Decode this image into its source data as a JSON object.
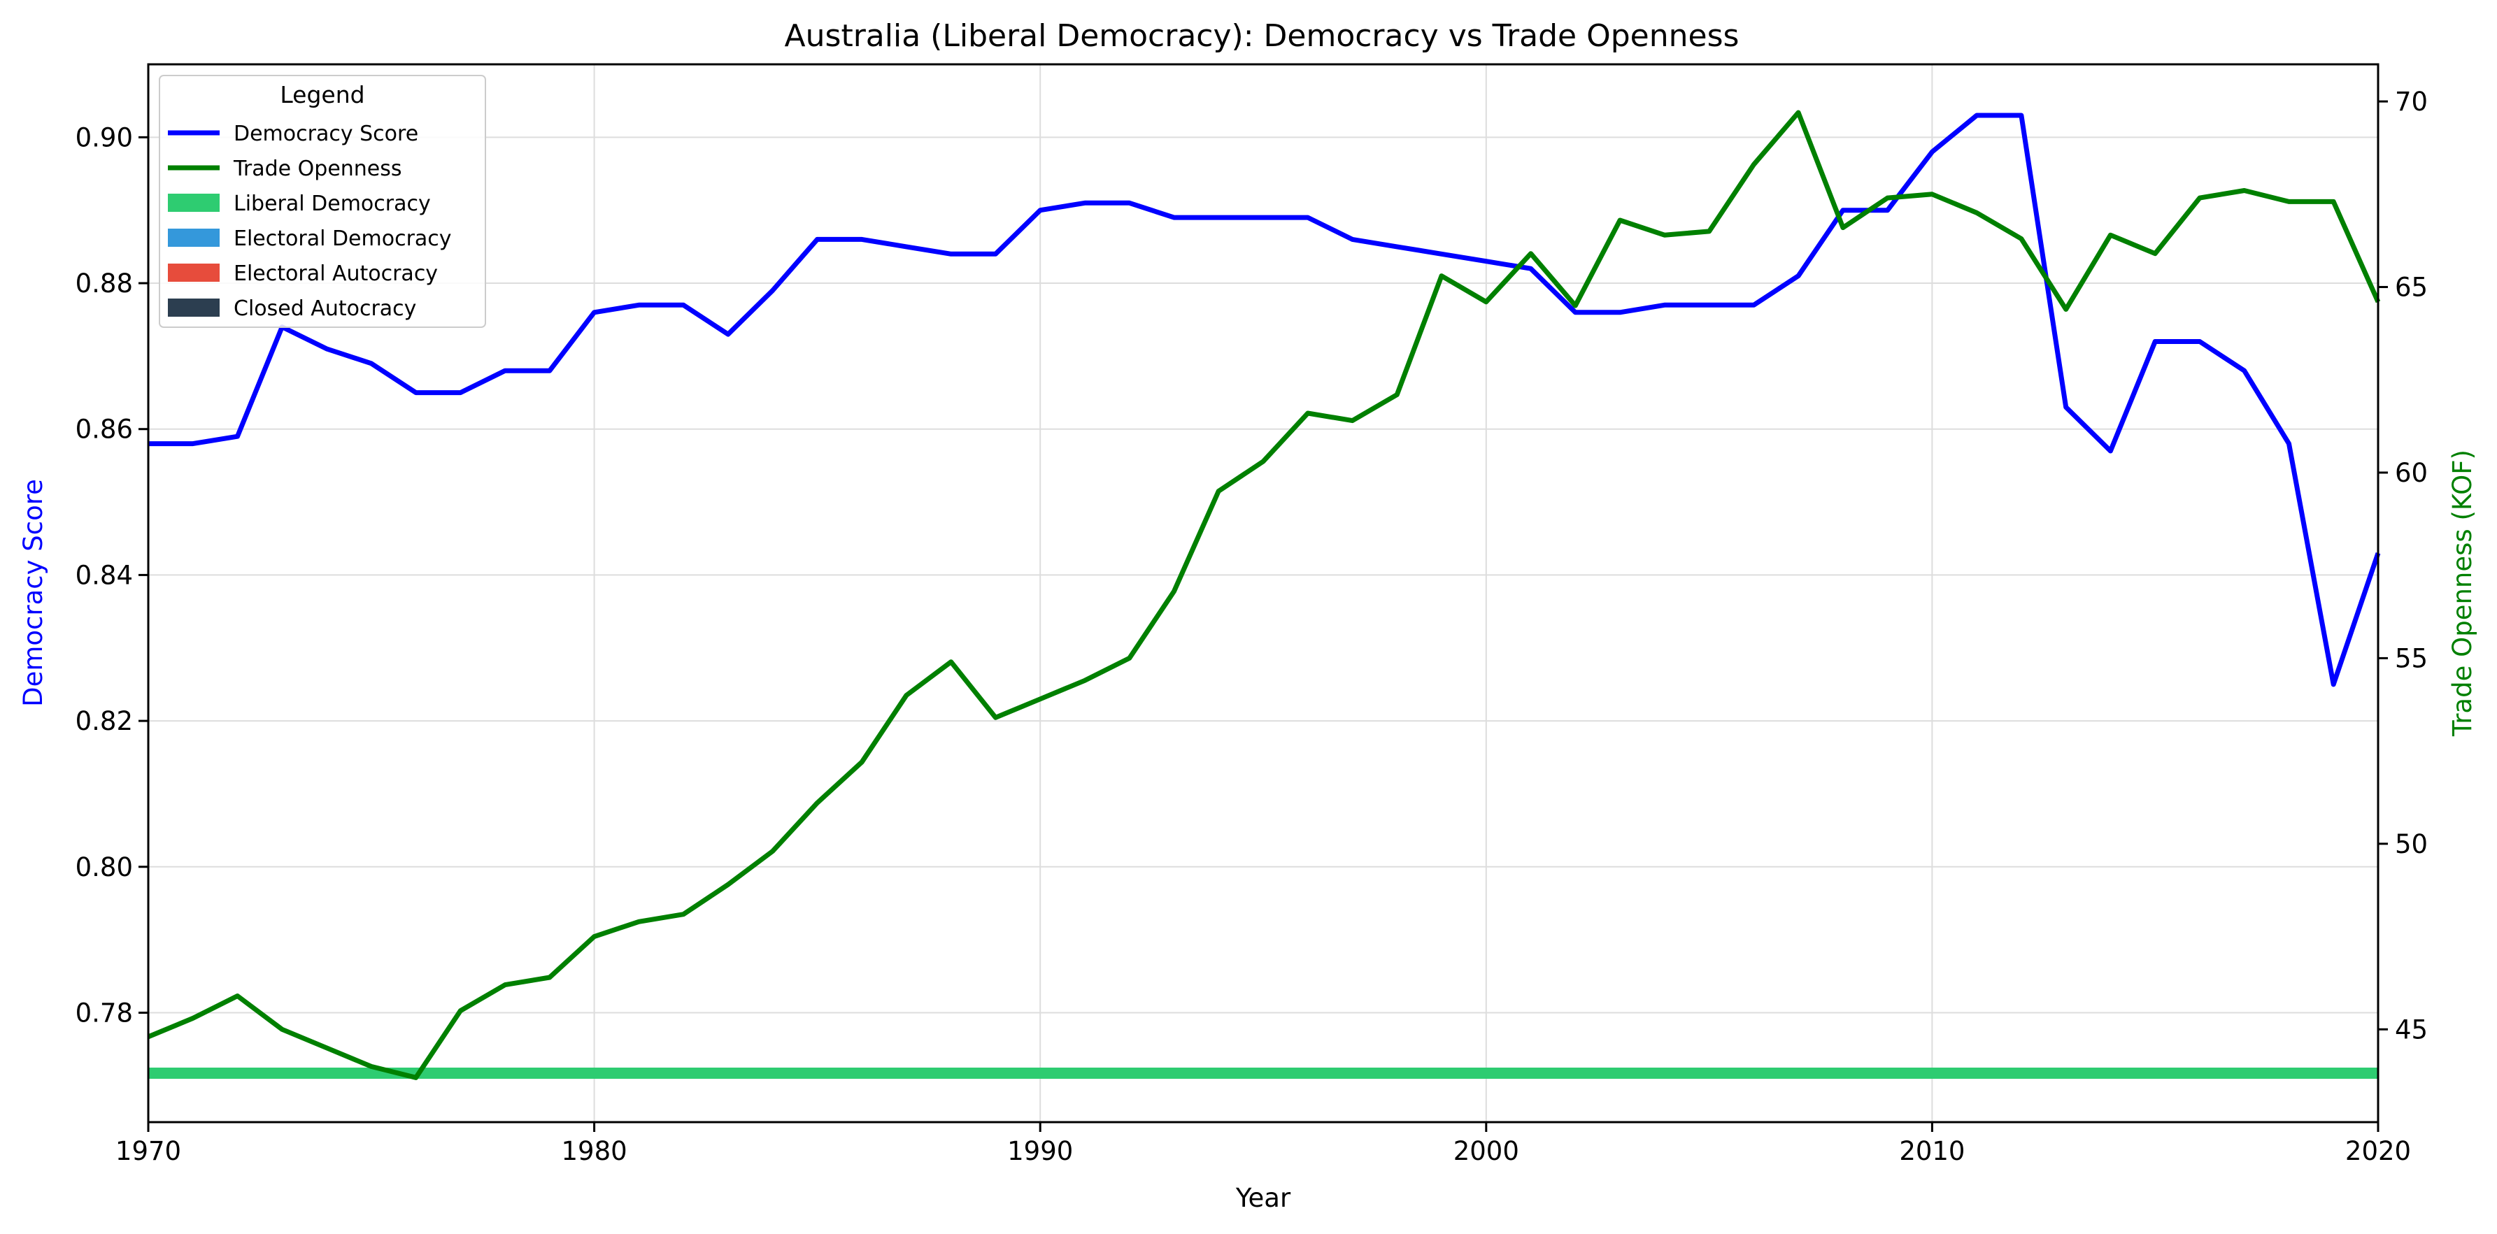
{
  "chart_data": {
    "type": "line",
    "title": "Australia (Liberal Democracy): Democracy vs Trade Openness",
    "xlabel": "Year",
    "ylabel_left": "Democracy Score",
    "ylabel_right": "Trade Openness (KOF)",
    "xlim": [
      1970,
      2020
    ],
    "ylim_left": [
      0.765,
      0.91
    ],
    "ylim_right": [
      42.5,
      71
    ],
    "x_ticks": [
      1970,
      1980,
      1990,
      2000,
      2010,
      2020
    ],
    "y_left_ticks": [
      "0.78",
      "0.80",
      "0.82",
      "0.84",
      "0.86",
      "0.88",
      "0.90"
    ],
    "y_right_ticks": [
      "45",
      "50",
      "55",
      "60",
      "65",
      "70"
    ],
    "grid": true,
    "legend": {
      "title": "Legend",
      "placement": "top-left",
      "entries": [
        {
          "label": "Democracy Score",
          "kind": "line",
          "color": "#0000ff"
        },
        {
          "label": "Trade Openness",
          "kind": "line",
          "color": "#008000"
        },
        {
          "label": "Liberal Democracy",
          "kind": "patch",
          "color": "#2ecc71"
        },
        {
          "label": "Electoral Democracy",
          "kind": "patch",
          "color": "#3498db"
        },
        {
          "label": "Electoral Autocracy",
          "kind": "patch",
          "color": "#e74c3c"
        },
        {
          "label": "Closed Autocracy",
          "kind": "patch",
          "color": "#2c3e50"
        }
      ]
    },
    "regime_band": {
      "label": "Liberal Democracy",
      "color": "#2ecc71",
      "start": 1970,
      "end": 2020
    },
    "series": [
      {
        "name": "Democracy Score",
        "axis": "left",
        "color": "#0000ff",
        "x": [
          1970,
          1971,
          1972,
          1973,
          1974,
          1975,
          1976,
          1977,
          1978,
          1979,
          1980,
          1981,
          1982,
          1983,
          1984,
          1985,
          1986,
          1987,
          1988,
          1989,
          1990,
          1991,
          1992,
          1993,
          1994,
          1995,
          1996,
          1997,
          1998,
          1999,
          2000,
          2001,
          2002,
          2003,
          2004,
          2005,
          2006,
          2007,
          2008,
          2009,
          2010,
          2011,
          2012,
          2013,
          2014,
          2015,
          2016,
          2017,
          2018,
          2019,
          2020
        ],
        "values": [
          0.858,
          0.858,
          0.859,
          0.874,
          0.871,
          0.869,
          0.865,
          0.865,
          0.868,
          0.868,
          0.876,
          0.877,
          0.877,
          0.873,
          0.879,
          0.886,
          0.886,
          0.885,
          0.884,
          0.884,
          0.89,
          0.891,
          0.891,
          0.889,
          0.889,
          0.889,
          0.889,
          0.886,
          0.885,
          0.884,
          0.883,
          0.882,
          0.876,
          0.876,
          0.877,
          0.877,
          0.877,
          0.881,
          0.89,
          0.89,
          0.898,
          0.903,
          0.903,
          0.863,
          0.857,
          0.872,
          0.872,
          0.868,
          0.858,
          0.825,
          0.843
        ]
      },
      {
        "name": "Trade Openness",
        "axis": "right",
        "color": "#008000",
        "x": [
          1970,
          1971,
          1972,
          1973,
          1974,
          1975,
          1976,
          1977,
          1978,
          1979,
          1980,
          1981,
          1982,
          1983,
          1984,
          1985,
          1986,
          1987,
          1988,
          1989,
          1990,
          1991,
          1992,
          1993,
          1994,
          1995,
          1996,
          1997,
          1998,
          1999,
          2000,
          2001,
          2002,
          2003,
          2004,
          2005,
          2006,
          2007,
          2008,
          2009,
          2010,
          2011,
          2012,
          2013,
          2014,
          2015,
          2016,
          2017,
          2018,
          2019,
          2020
        ],
        "values": [
          44.8,
          45.3,
          45.9,
          45.0,
          44.5,
          44.0,
          43.7,
          45.5,
          46.2,
          46.4,
          47.5,
          47.9,
          48.1,
          48.9,
          49.8,
          51.1,
          52.2,
          54.0,
          54.9,
          53.4,
          53.9,
          54.4,
          55.0,
          56.8,
          59.5,
          60.3,
          61.6,
          61.4,
          62.1,
          65.3,
          64.6,
          65.9,
          64.5,
          66.8,
          66.4,
          66.5,
          68.3,
          69.7,
          66.6,
          67.4,
          67.5,
          67.0,
          66.3,
          64.4,
          66.4,
          65.9,
          67.4,
          67.6,
          67.3,
          67.3,
          64.6
        ]
      }
    ]
  }
}
